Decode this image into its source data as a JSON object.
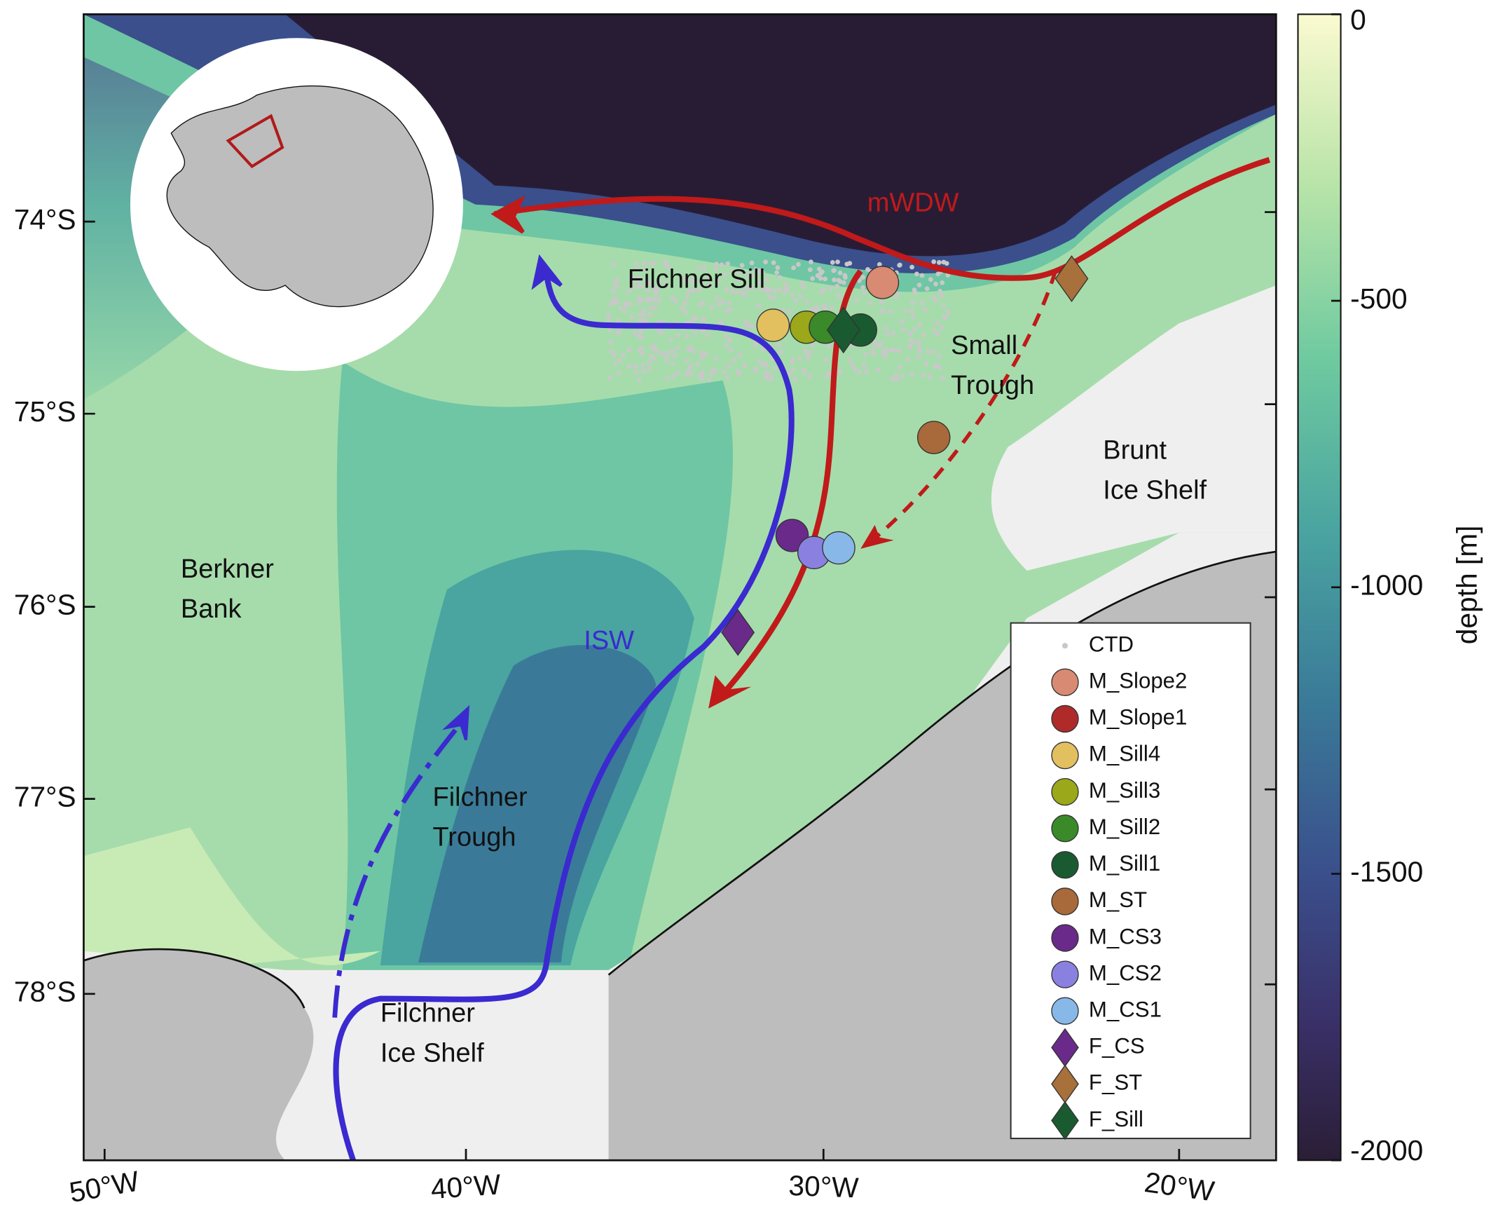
{
  "map": {
    "lat_labels": [
      "74°S",
      "75°S",
      "76°S",
      "77°S",
      "78°S"
    ],
    "lon_labels": [
      "50°W",
      "40°W",
      "30°W",
      "20°W"
    ],
    "places": [
      {
        "lines": [
          "Filchner Sill"
        ]
      },
      {
        "lines": [
          "Small",
          "Trough"
        ]
      },
      {
        "lines": [
          "Brunt",
          "Ice Shelf"
        ]
      },
      {
        "lines": [
          "Berkner",
          "Bank"
        ]
      },
      {
        "lines": [
          "Filchner",
          "Trough"
        ]
      },
      {
        "lines": [
          "Filchner",
          "Ice Shelf"
        ]
      }
    ],
    "currents": [
      {
        "label": "mWDW"
      },
      {
        "label": "ISW"
      }
    ],
    "legend": [
      {
        "label": "CTD",
        "marker": "dot",
        "color": "#c8c8c8"
      },
      {
        "label": "M_Slope2",
        "marker": "circle",
        "color": "#d98a72"
      },
      {
        "label": "M_Slope1",
        "marker": "circle",
        "color": "#b02a2a"
      },
      {
        "label": "M_Sill4",
        "marker": "circle",
        "color": "#e2c060"
      },
      {
        "label": "M_Sill3",
        "marker": "circle",
        "color": "#9aa81a"
      },
      {
        "label": "M_Sill2",
        "marker": "circle",
        "color": "#3a8a2a"
      },
      {
        "label": "M_Sill1",
        "marker": "circle",
        "color": "#1a5a30"
      },
      {
        "label": "M_ST",
        "marker": "circle",
        "color": "#a86a3a"
      },
      {
        "label": "M_CS3",
        "marker": "circle",
        "color": "#6a2a8a"
      },
      {
        "label": "M_CS2",
        "marker": "circle",
        "color": "#8a80e0"
      },
      {
        "label": "M_CS1",
        "marker": "circle",
        "color": "#88b8e8"
      },
      {
        "label": "F_CS",
        "marker": "diamond",
        "color": "#6a2a8a"
      },
      {
        "label": "F_ST",
        "marker": "diamond",
        "color": "#a8703a"
      },
      {
        "label": "F_Sill",
        "marker": "diamond",
        "color": "#1a5a30"
      }
    ],
    "colorbar": {
      "label": "depth [m]",
      "ticks": [
        0,
        -500,
        -1000,
        -1500,
        -2000
      ]
    }
  }
}
